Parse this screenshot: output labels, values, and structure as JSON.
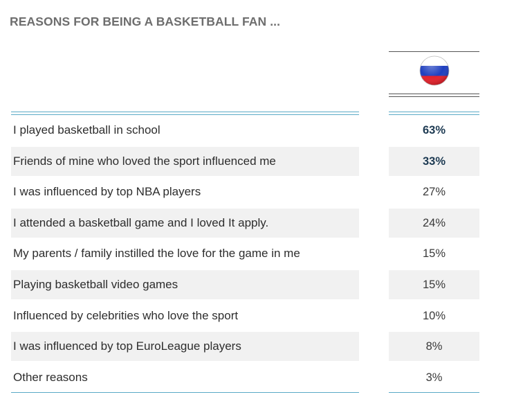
{
  "title": "REASONS FOR BEING A BASKETBALL FAN ...",
  "column_header": {
    "icon": "russia-flag-icon",
    "flag_colors": [
      "#ffffff",
      "#1f3fbf",
      "#e4202a"
    ]
  },
  "colors": {
    "rule": "#5aaac6",
    "shade": "#f1f1f1",
    "highlight_text": "#1d3a52"
  },
  "chart_data": {
    "type": "table",
    "title": "REASONS FOR BEING A BASKETBALL FAN ...",
    "rows": [
      {
        "label": "I played basketball in school",
        "value": "63%",
        "number": 63,
        "bold": true
      },
      {
        "label": "Friends of mine who loved the sport influenced me",
        "value": "33%",
        "number": 33,
        "bold": true
      },
      {
        "label": "I was influenced by top NBA players",
        "value": "27%",
        "number": 27,
        "bold": false
      },
      {
        "label": "I attended a basketball game and I loved It  apply.",
        "value": "24%",
        "number": 24,
        "bold": false
      },
      {
        "label": "My parents / family instilled the love for the game in me",
        "value": "15%",
        "number": 15,
        "bold": false
      },
      {
        "label": "Playing basketball video games",
        "value": "15%",
        "number": 15,
        "bold": false
      },
      {
        "label": "Influenced by celebrities who love the sport",
        "value": "10%",
        "number": 10,
        "bold": false
      },
      {
        "label": "I was influenced by top EuroLeague players",
        "value": "8%",
        "number": 8,
        "bold": false
      },
      {
        "label": "Other reasons",
        "value": "3%",
        "number": 3,
        "bold": false
      }
    ]
  }
}
